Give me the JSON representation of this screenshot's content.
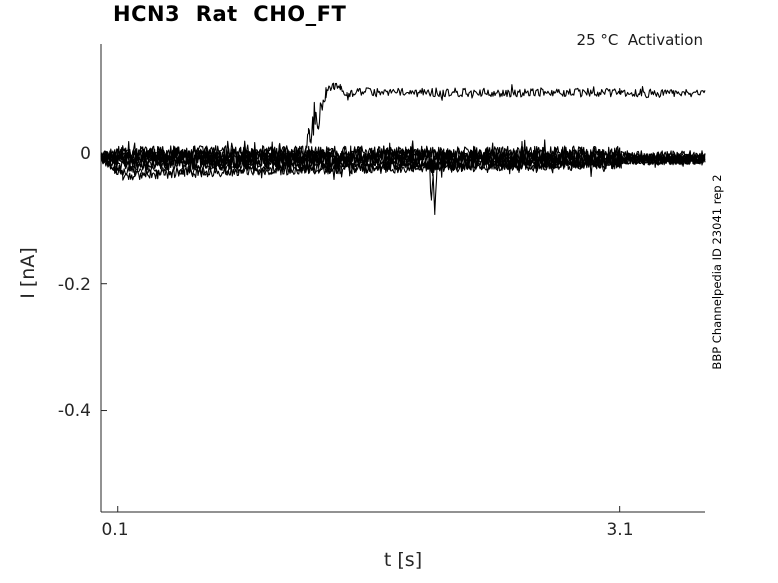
{
  "chart_data": {
    "type": "line",
    "title": "HCN3  Rat  CHO_FT",
    "subtitle": "25 °C  Activation",
    "xlabel": "t [s]",
    "ylabel": "I [nA]",
    "annotation_right": "BBP Channelpedia ID 23041 rep 2",
    "xlim": [
      0,
      3.61
    ],
    "ylim": [
      -0.56,
      0.178
    ],
    "xticks": [
      0.1,
      3.1
    ],
    "xtick_labels": [
      "0.1",
      "3.1"
    ],
    "yticks": [
      0,
      -0.2,
      -0.4
    ],
    "ytick_labels": [
      "0",
      "-0.2",
      "-0.4"
    ],
    "grid": false,
    "legend": "none",
    "line_color": "#000000",
    "axis_color": "#262626",
    "protocol": {
      "step_start_s": 0.1,
      "step_end_s": 3.1,
      "temperature_c": 25,
      "mode": "Activation"
    },
    "series": [
      {
        "name": "sweep-baseline-a",
        "points": [
          [
            0,
            0.0,
            0.006
          ],
          [
            0.1,
            0.0,
            0.012
          ],
          [
            3.1,
            0.0,
            0.012
          ],
          [
            3.11,
            -0.002,
            0.008
          ],
          [
            3.61,
            -0.002,
            0.008
          ]
        ]
      },
      {
        "name": "sweep-baseline-b",
        "points": [
          [
            0,
            -0.002,
            0.006
          ],
          [
            0.1,
            -0.004,
            0.013
          ],
          [
            3.1,
            -0.004,
            0.013
          ],
          [
            3.11,
            -0.005,
            0.008
          ],
          [
            3.61,
            -0.005,
            0.008
          ]
        ]
      },
      {
        "name": "sweep-baseline-c",
        "points": [
          [
            0,
            0.002,
            0.006
          ],
          [
            0.1,
            0.005,
            0.012
          ],
          [
            3.1,
            0.005,
            0.012
          ],
          [
            3.11,
            0.001,
            0.008
          ],
          [
            3.61,
            0.001,
            0.008
          ]
        ]
      },
      {
        "name": "sweep-baseline-d",
        "points": [
          [
            0,
            -0.001,
            0.006
          ],
          [
            0.1,
            -0.008,
            0.012
          ],
          [
            3.1,
            -0.008,
            0.012
          ],
          [
            3.11,
            -0.004,
            0.008
          ],
          [
            3.61,
            -0.004,
            0.008
          ]
        ]
      },
      {
        "name": "sweep-baseline-e",
        "points": [
          [
            0,
            0.001,
            0.006
          ],
          [
            0.1,
            0.007,
            0.011
          ],
          [
            3.1,
            0.006,
            0.011
          ],
          [
            3.11,
            0.002,
            0.008
          ],
          [
            3.61,
            0.002,
            0.008
          ]
        ]
      },
      {
        "name": "sweep-fringe-a",
        "points": [
          [
            0,
            -0.003,
            0.006
          ],
          [
            0.12,
            -0.022,
            0.009
          ],
          [
            1.5,
            -0.018,
            0.009
          ],
          [
            2.9,
            -0.012,
            0.009
          ],
          [
            3.1,
            -0.01,
            0.009
          ],
          [
            3.11,
            -0.006,
            0.007
          ],
          [
            3.61,
            -0.006,
            0.007
          ]
        ]
      },
      {
        "name": "sweep-fringe-b",
        "points": [
          [
            0,
            -0.004,
            0.006
          ],
          [
            0.13,
            -0.03,
            0.007
          ],
          [
            0.5,
            -0.025,
            0.008
          ],
          [
            1.2,
            -0.02,
            0.008
          ],
          [
            2.2,
            -0.014,
            0.008
          ],
          [
            3.1,
            -0.01,
            0.008
          ],
          [
            3.11,
            -0.005,
            0.007
          ],
          [
            3.61,
            -0.005,
            0.007
          ]
        ]
      },
      {
        "name": "sweep-with-artifact-spike",
        "points": [
          [
            0,
            0.0,
            0.006
          ],
          [
            0.1,
            -0.002,
            0.012
          ],
          [
            1.96,
            -0.002,
            0.012
          ],
          [
            1.975,
            -0.07,
            0.005
          ],
          [
            1.985,
            -0.03,
            0.005
          ],
          [
            1.995,
            -0.088,
            0.003
          ],
          [
            2.01,
            -0.002,
            0.012
          ],
          [
            3.1,
            -0.002,
            0.012
          ],
          [
            3.11,
            -0.003,
            0.008
          ],
          [
            3.61,
            -0.003,
            0.008
          ]
        ]
      },
      {
        "name": "sweep-baseline-f",
        "points": [
          [
            0,
            -0.002,
            0.006
          ],
          [
            0.1,
            -0.012,
            0.01
          ],
          [
            0.9,
            -0.012,
            0.01
          ],
          [
            3.1,
            -0.008,
            0.01
          ],
          [
            3.11,
            -0.004,
            0.007
          ],
          [
            3.61,
            -0.004,
            0.007
          ]
        ]
      },
      {
        "name": "sweep-activating",
        "points": [
          [
            0,
            0.001,
            0.006
          ],
          [
            0.1,
            0.002,
            0.01
          ],
          [
            1.22,
            0.002,
            0.01
          ],
          [
            1.24,
            0.035,
            0.015
          ],
          [
            1.255,
            0.02,
            0.012
          ],
          [
            1.28,
            0.065,
            0.015
          ],
          [
            1.3,
            0.055,
            0.012
          ],
          [
            1.345,
            0.1,
            0.01
          ],
          [
            1.39,
            0.113,
            0.007
          ],
          [
            1.43,
            0.108,
            0.007
          ],
          [
            1.47,
            0.096,
            0.007
          ],
          [
            1.55,
            0.102,
            0.007
          ],
          [
            3.1,
            0.101,
            0.007
          ],
          [
            3.61,
            0.1,
            0.007
          ]
        ]
      }
    ]
  }
}
